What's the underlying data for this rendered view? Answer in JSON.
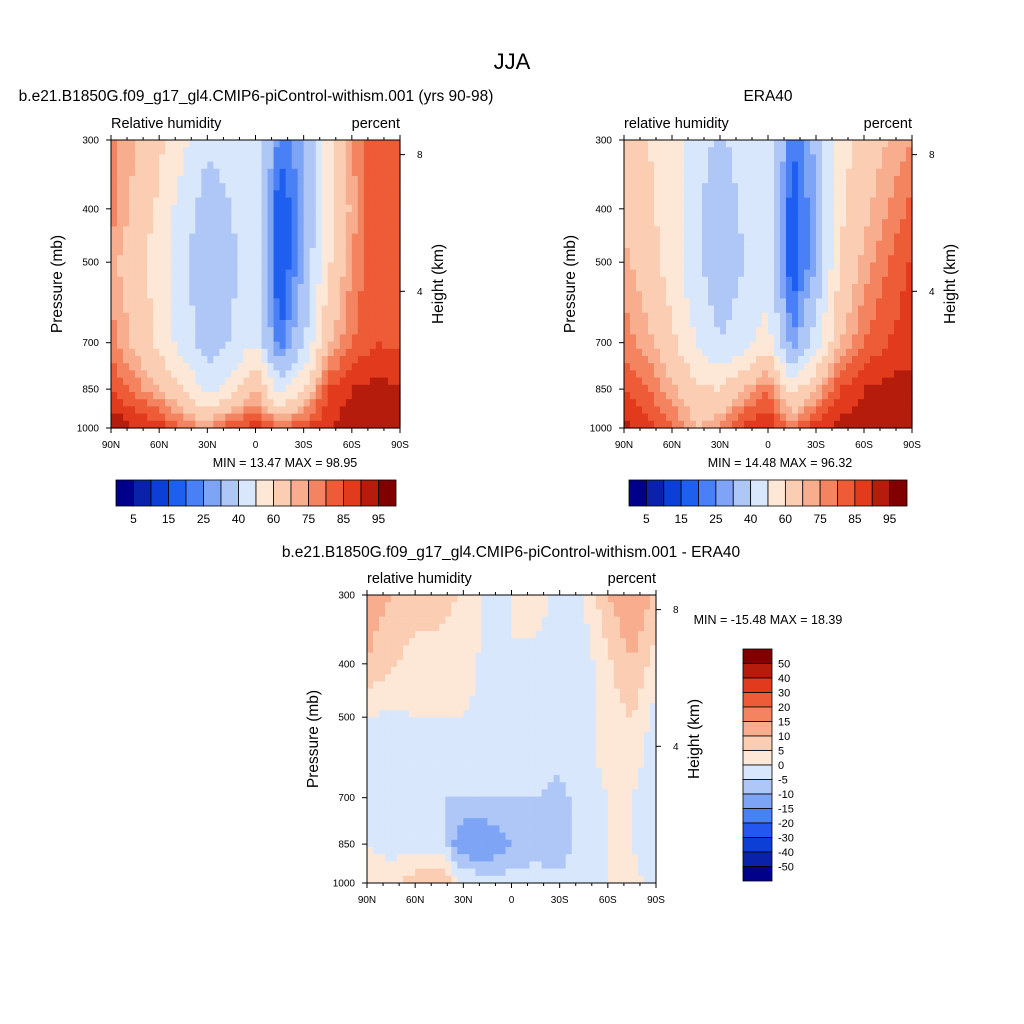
{
  "page_title": "JJA",
  "colors": {
    "rh_levels": [
      "#00008b",
      "#0a22aa",
      "#0c3fd5",
      "#1f5ff0",
      "#4a80f5",
      "#7da4f5",
      "#aec7f7",
      "#d8e7fb",
      "#fde8d8",
      "#fbcdb2",
      "#f8ad8e",
      "#f3845f",
      "#ee5b37",
      "#e23a1d",
      "#b51c0c",
      "#800000"
    ],
    "diff_levels": [
      "#00008b",
      "#0a22aa",
      "#0c3fd5",
      "#2457ef",
      "#4a80f5",
      "#7da4f5",
      "#aec7f7",
      "#d8e7fb",
      "#fde8d8",
      "#fbcdb2",
      "#f8ad8e",
      "#f3845f",
      "#ee5b37",
      "#e23a1d",
      "#b51c0c",
      "#800000"
    ]
  },
  "chart_data": [
    {
      "type": "heatmap",
      "name": "model",
      "title": "b.e21.B1850G.f09_g17_gl4.CMIP6-piControl-withism.001 (yrs 90-98)",
      "left_label": "Relative humidity",
      "right_label": "percent",
      "xlabel": "",
      "ylabel": "Pressure (mb)",
      "y2label": "Height (km)",
      "x_ticks": [
        "90N",
        "60N",
        "30N",
        "0",
        "30S",
        "60S",
        "90S"
      ],
      "x_tick_values": [
        90,
        60,
        30,
        0,
        -30,
        -60,
        -90
      ],
      "y_ticks": [
        "300",
        "400",
        "500",
        "700",
        "850",
        "1000"
      ],
      "y_tick_values": [
        300,
        400,
        500,
        700,
        850,
        1000
      ],
      "y2_ticks": [
        "8",
        "4"
      ],
      "y2_tick_values": [
        8,
        4
      ],
      "xlim": [
        90,
        -90
      ],
      "ylim": [
        300,
        1000
      ],
      "stats": "MIN =  13.47  MAX =  98.95",
      "min": 13.47,
      "max": 98.95,
      "colorbar_labels": [
        "5",
        "15",
        "25",
        "40",
        "60",
        "75",
        "85",
        "95"
      ],
      "levels": [
        5,
        10,
        15,
        20,
        25,
        30,
        40,
        50,
        60,
        70,
        75,
        80,
        85,
        90,
        95
      ],
      "lat": [
        90,
        75,
        60,
        45,
        30,
        15,
        0,
        -15,
        -30,
        -45,
        -60,
        -75,
        -90
      ],
      "plev": [
        300,
        400,
        500,
        700,
        850,
        1000
      ],
      "values": [
        [
          78,
          70,
          62,
          52,
          42,
          44,
          50,
          22,
          30,
          55,
          75,
          85,
          84
        ],
        [
          78,
          68,
          58,
          45,
          35,
          40,
          48,
          14,
          28,
          55,
          72,
          85,
          84
        ],
        [
          72,
          64,
          55,
          42,
          32,
          38,
          45,
          13,
          30,
          58,
          75,
          85,
          84
        ],
        [
          78,
          68,
          58,
          45,
          35,
          40,
          50,
          20,
          38,
          68,
          80,
          85,
          84
        ],
        [
          85,
          78,
          70,
          60,
          45,
          55,
          70,
          45,
          60,
          85,
          90,
          92,
          90
        ],
        [
          95,
          90,
          88,
          80,
          75,
          85,
          88,
          80,
          85,
          90,
          93,
          95,
          94
        ]
      ]
    },
    {
      "type": "heatmap",
      "name": "obs",
      "title": "ERA40",
      "left_label": "relative humidity",
      "right_label": "percent",
      "xlabel": "",
      "ylabel": "Pressure (mb)",
      "y2label": "Height (km)",
      "x_ticks": [
        "90N",
        "60N",
        "30N",
        "0",
        "30S",
        "60S",
        "90S"
      ],
      "x_tick_values": [
        90,
        60,
        30,
        0,
        -30,
        -60,
        -90
      ],
      "y_ticks": [
        "300",
        "400",
        "500",
        "700",
        "850",
        "1000"
      ],
      "y_tick_values": [
        300,
        400,
        500,
        700,
        850,
        1000
      ],
      "y2_ticks": [
        "8",
        "4"
      ],
      "y2_tick_values": [
        8,
        4
      ],
      "xlim": [
        90,
        -90
      ],
      "ylim": [
        300,
        1000
      ],
      "stats": "MIN =  14.48  MAX =  96.32",
      "min": 14.48,
      "max": 96.32,
      "colorbar_labels": [
        "5",
        "15",
        "25",
        "40",
        "60",
        "75",
        "85",
        "95"
      ],
      "levels": [
        5,
        10,
        15,
        20,
        25,
        30,
        40,
        50,
        60,
        70,
        75,
        80,
        85,
        90,
        95
      ],
      "lat": [
        90,
        75,
        60,
        45,
        30,
        15,
        0,
        -15,
        -30,
        -45,
        -60,
        -75,
        -90
      ],
      "plev": [
        300,
        400,
        500,
        700,
        850,
        1000
      ],
      "values": [
        [
          65,
          60,
          55,
          45,
          38,
          45,
          50,
          20,
          32,
          55,
          65,
          70,
          75
        ],
        [
          68,
          62,
          55,
          42,
          32,
          42,
          48,
          15,
          30,
          58,
          68,
          75,
          82
        ],
        [
          72,
          65,
          55,
          42,
          32,
          40,
          45,
          14,
          30,
          60,
          72,
          80,
          86
        ],
        [
          78,
          72,
          62,
          50,
          40,
          45,
          55,
          25,
          45,
          70,
          80,
          85,
          88
        ],
        [
          85,
          80,
          72,
          62,
          60,
          70,
          80,
          55,
          70,
          85,
          90,
          92,
          92
        ],
        [
          92,
          88,
          80,
          70,
          75,
          88,
          90,
          80,
          88,
          92,
          93,
          94,
          95
        ]
      ]
    },
    {
      "type": "heatmap",
      "name": "difference",
      "title": "b.e21.B1850G.f09_g17_gl4.CMIP6-piControl-withism.001 - ERA40",
      "left_label": "relative humidity",
      "right_label": "percent",
      "xlabel": "",
      "ylabel": "Pressure (mb)",
      "y2label": "Height (km)",
      "x_ticks": [
        "90N",
        "60N",
        "30N",
        "0",
        "30S",
        "60S",
        "90S"
      ],
      "x_tick_values": [
        90,
        60,
        30,
        0,
        -30,
        -60,
        -90
      ],
      "y_ticks": [
        "300",
        "400",
        "500",
        "700",
        "850",
        "1000"
      ],
      "y_tick_values": [
        300,
        400,
        500,
        700,
        850,
        1000
      ],
      "y2_ticks": [
        "8",
        "4"
      ],
      "y2_tick_values": [
        8,
        4
      ],
      "xlim": [
        90,
        -90
      ],
      "ylim": [
        300,
        1000
      ],
      "stats": "MIN = -15.48  MAX =  18.39",
      "min": -15.48,
      "max": 18.39,
      "colorbar_labels": [
        "50",
        "40",
        "30",
        "20",
        "15",
        "10",
        "5",
        "0",
        "-5",
        "-10",
        "-15",
        "-20",
        "-30",
        "-40",
        "-50"
      ],
      "levels": [
        -50,
        -40,
        -30,
        -20,
        -15,
        -10,
        -5,
        0,
        5,
        10,
        15,
        20,
        30,
        40,
        50
      ],
      "lat": [
        90,
        75,
        60,
        45,
        30,
        15,
        0,
        -15,
        -30,
        -45,
        -60,
        -75,
        -90
      ],
      "plev": [
        300,
        400,
        500,
        700,
        850,
        1000
      ],
      "values": [
        [
          13,
          10,
          7,
          7,
          4,
          -1,
          0,
          2,
          -2,
          0,
          10,
          15,
          9
        ],
        [
          10,
          6,
          3,
          3,
          3,
          -2,
          0,
          -1,
          -2,
          -3,
          4,
          10,
          2
        ],
        [
          0,
          -1,
          0,
          0,
          0,
          -2,
          0,
          -1,
          0,
          -2,
          3,
          5,
          -2
        ],
        [
          0,
          -4,
          -4,
          -5,
          -5,
          -5,
          -5,
          -5,
          -7,
          -2,
          0,
          0,
          -4
        ],
        [
          0,
          -2,
          -2,
          -2,
          -15,
          -15,
          -10,
          -10,
          -10,
          0,
          0,
          0,
          -2
        ],
        [
          3,
          2,
          8,
          10,
          0,
          -3,
          -2,
          0,
          -3,
          -2,
          0,
          1,
          -1
        ]
      ]
    }
  ]
}
